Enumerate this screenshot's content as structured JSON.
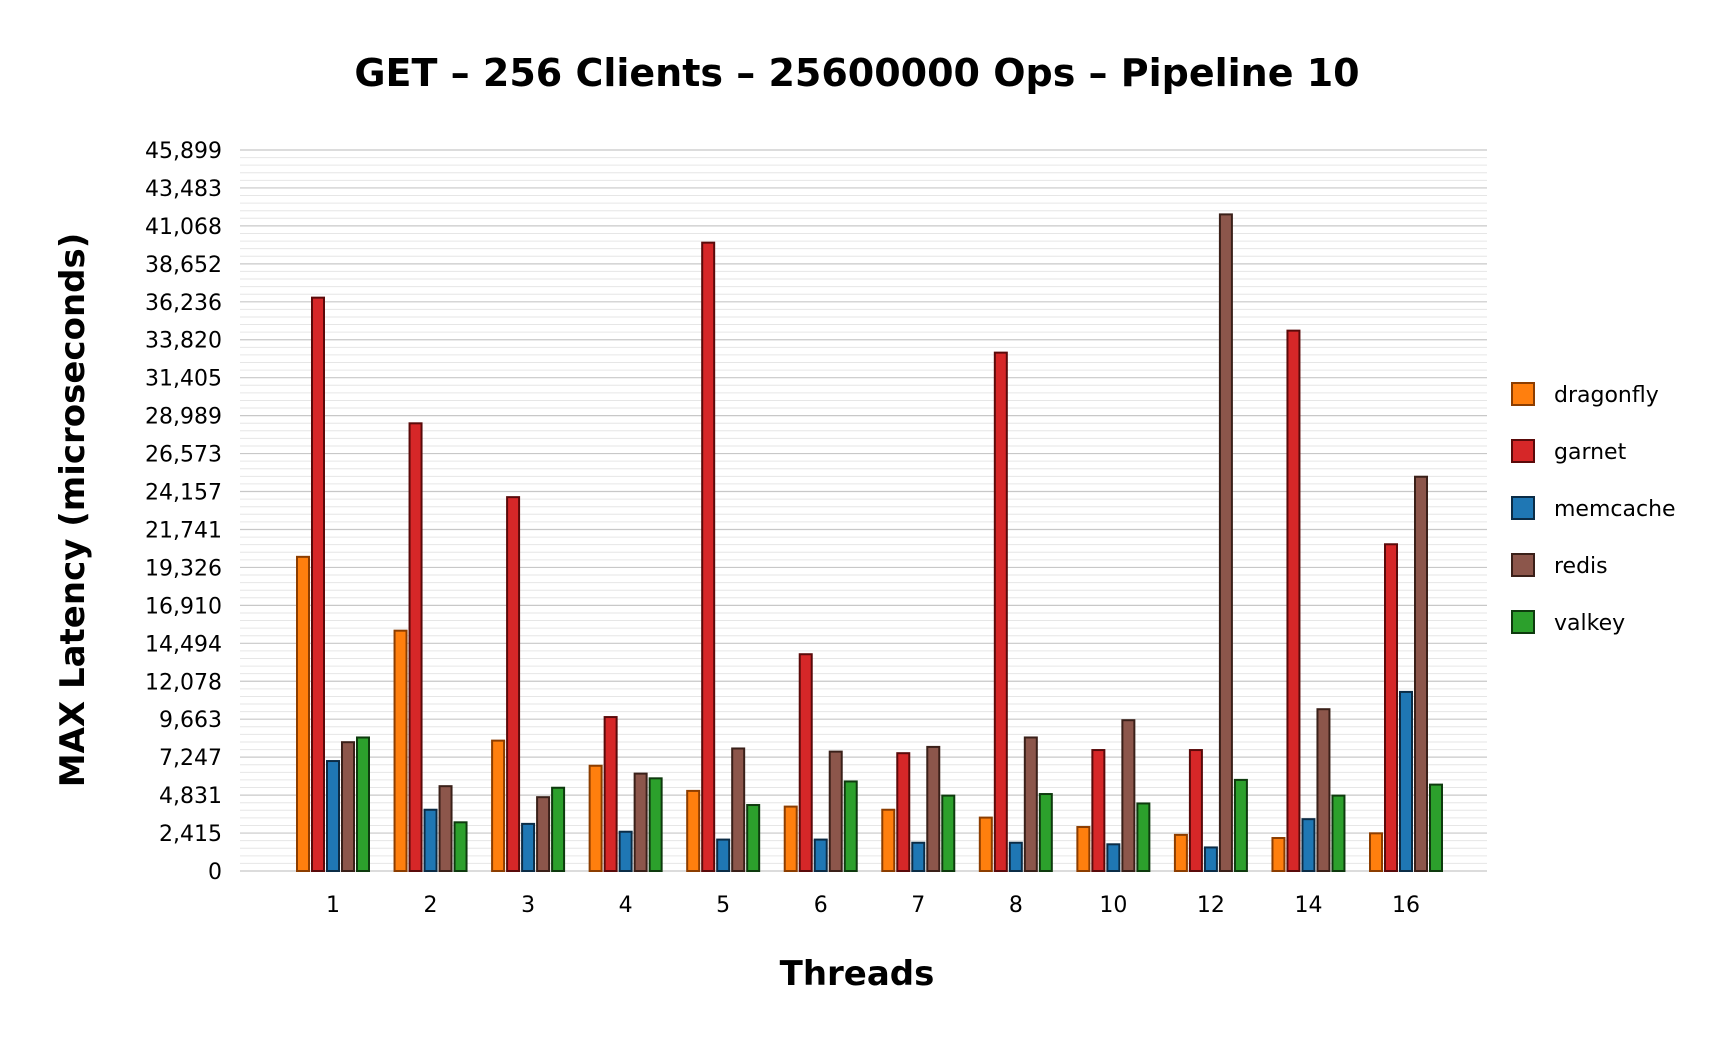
{
  "chart_data": {
    "type": "bar",
    "title": "GET – 256 Clients – 25600000 Ops – Pipeline 10",
    "xlabel": "Threads",
    "ylabel": "MAX Latency (microseconds)",
    "categories": [
      "1",
      "2",
      "3",
      "4",
      "5",
      "6",
      "7",
      "8",
      "10",
      "12",
      "14",
      "16"
    ],
    "yticks": [
      "0",
      "2,415",
      "4,831",
      "7,247",
      "9,663",
      "12,078",
      "14,494",
      "16,910",
      "19,326",
      "21,741",
      "24,157",
      "26,573",
      "28,989",
      "31,405",
      "33,820",
      "36,236",
      "38,652",
      "41,068",
      "43,483",
      "45,899"
    ],
    "ylim": [
      0,
      45899
    ],
    "grid": true,
    "legend_position": "right",
    "series": [
      {
        "name": "dragonfly",
        "color": "#ff7f0e",
        "border": "#8c3d00",
        "values": [
          20000,
          15300,
          8300,
          6700,
          5100,
          4100,
          3900,
          3400,
          2800,
          2300,
          2100,
          2400
        ]
      },
      {
        "name": "garnet",
        "color": "#d62728",
        "border": "#5a0a0a",
        "values": [
          36500,
          28500,
          23800,
          9800,
          40000,
          13800,
          7500,
          33000,
          7700,
          7700,
          34400,
          20800
        ]
      },
      {
        "name": "memcache",
        "color": "#1f77b4",
        "border": "#0b2c46",
        "values": [
          7000,
          3900,
          3000,
          2500,
          2000,
          2000,
          1800,
          1800,
          1700,
          1500,
          3300,
          11400
        ]
      },
      {
        "name": "redis",
        "color": "#8c564b",
        "border": "#3a2019",
        "values": [
          8200,
          5400,
          4700,
          6200,
          7800,
          7600,
          7900,
          8500,
          9600,
          41800,
          10300,
          25100
        ]
      },
      {
        "name": "valkey",
        "color": "#2ca02c",
        "border": "#0e3a0e",
        "values": [
          8500,
          3100,
          5300,
          5900,
          4200,
          5700,
          4800,
          4900,
          4300,
          5800,
          4800,
          5500
        ]
      }
    ]
  }
}
